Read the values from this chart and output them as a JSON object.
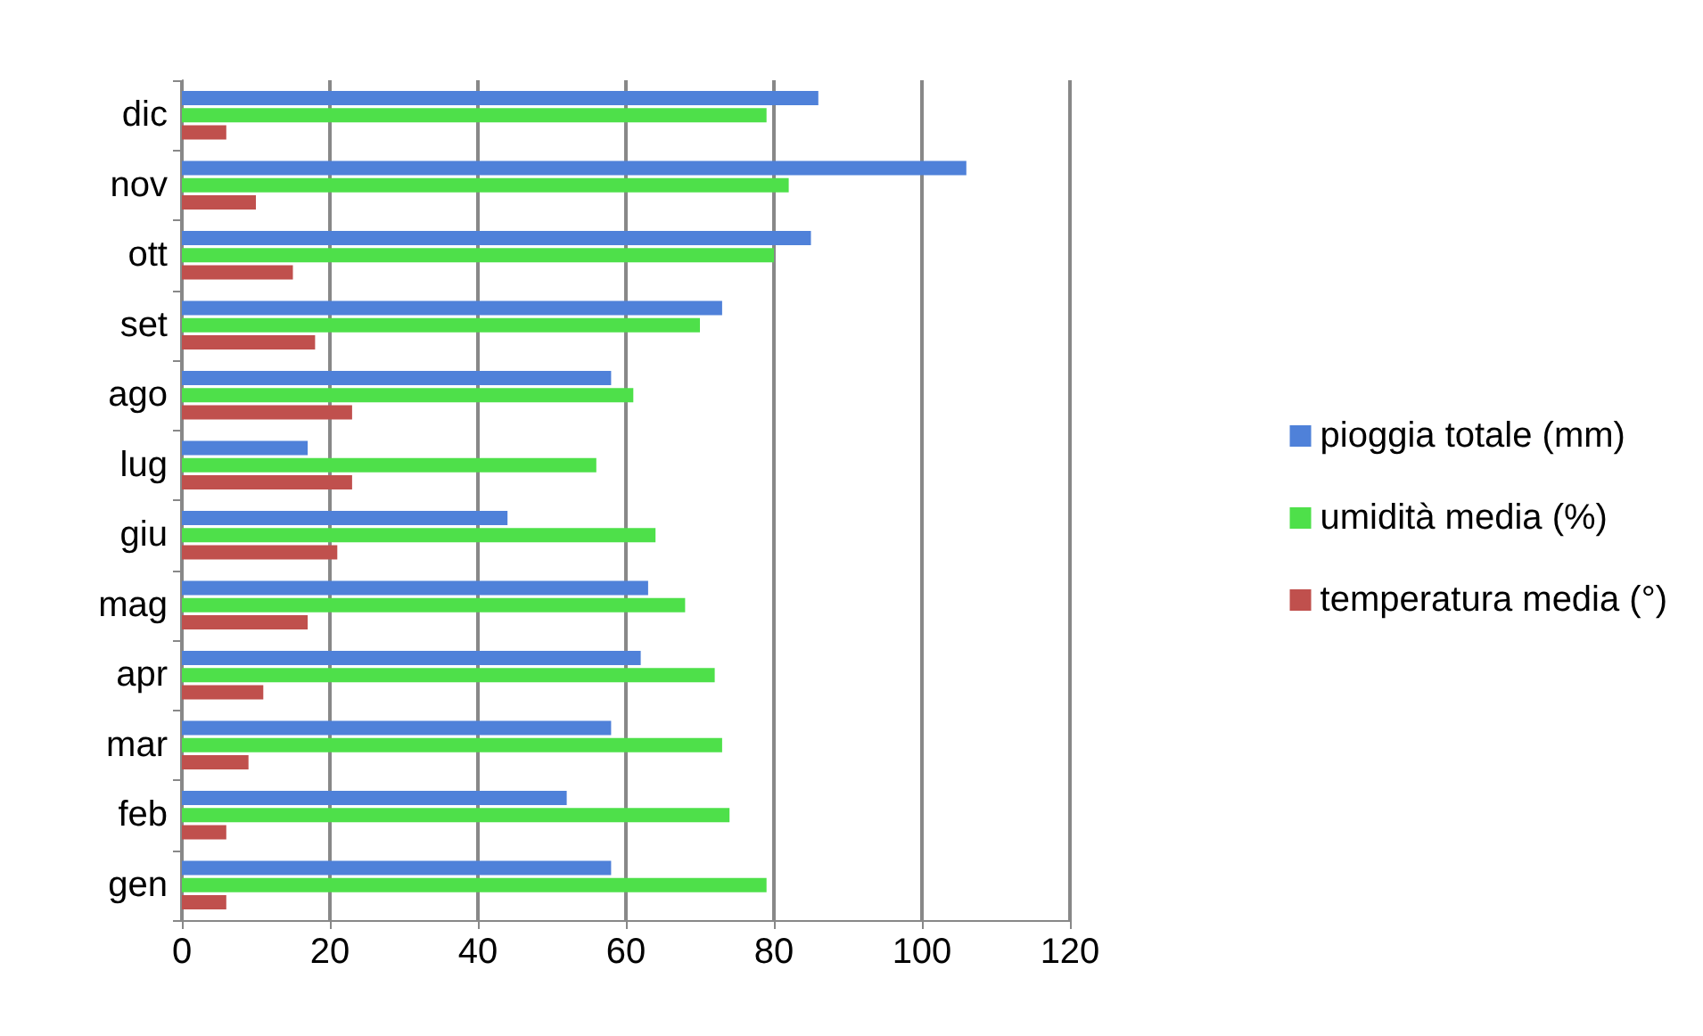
{
  "chart_data": {
    "type": "bar",
    "orientation": "horizontal",
    "categories": [
      "dic",
      "nov",
      "ott",
      "set",
      "ago",
      "lug",
      "giu",
      "mag",
      "apr",
      "mar",
      "feb",
      "gen"
    ],
    "series": [
      {
        "name": "pioggia totale (mm)",
        "color": "#4f81d9",
        "values": [
          86,
          106,
          85,
          73,
          58,
          17,
          44,
          63,
          62,
          58,
          52,
          58
        ]
      },
      {
        "name": "umidità media (%)",
        "color": "#4ee04a",
        "values": [
          79,
          82,
          80,
          70,
          61,
          56,
          64,
          68,
          72,
          73,
          74,
          79
        ]
      },
      {
        "name": "temperatura media (°)",
        "color": "#c0504d",
        "values": [
          6,
          10,
          15,
          18,
          23,
          23,
          21,
          17,
          11,
          9,
          6,
          6
        ]
      }
    ],
    "xlim": [
      0,
      120
    ],
    "xticks": [
      0,
      20,
      40,
      60,
      80,
      100,
      120
    ],
    "grid": "x",
    "legend": "right"
  }
}
